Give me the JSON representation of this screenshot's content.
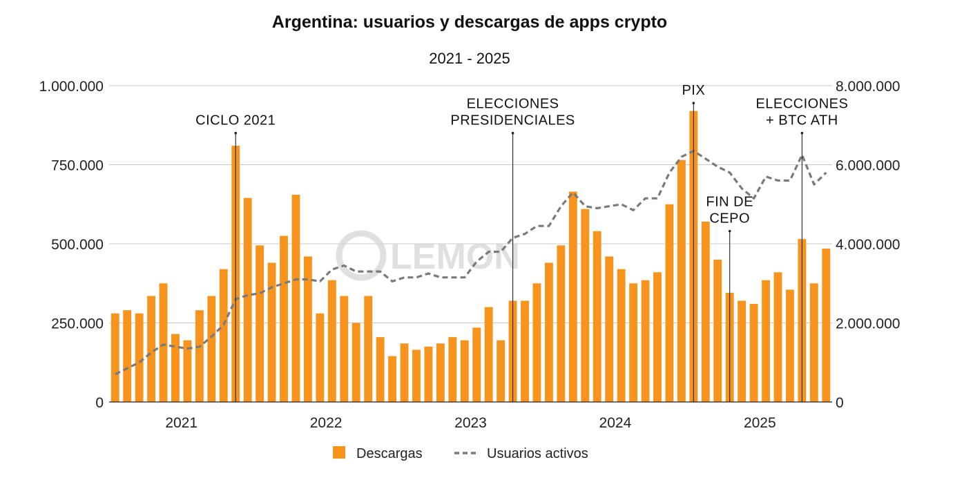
{
  "chart_data": {
    "type": "bar",
    "title": "Argentina: usuarios y descargas de apps crypto",
    "subtitle": "2021 - 2025",
    "watermark": "LEMON",
    "left_axis": {
      "ylim": [
        0,
        1000000
      ],
      "ticks": [
        0,
        250000,
        500000,
        750000,
        1000000
      ],
      "tick_labels": [
        "0",
        "250.000",
        "500.000",
        "750.000",
        "1.000.000"
      ]
    },
    "right_axis": {
      "ylim": [
        0,
        8000000
      ],
      "ticks": [
        0,
        2000000,
        4000000,
        6000000,
        8000000
      ],
      "tick_labels": [
        "0",
        "2.000.000",
        "4.000.000",
        "6.000.000",
        "8.000.000"
      ]
    },
    "x_labels": [
      {
        "label": "2021",
        "month_index": 6
      },
      {
        "label": "2022",
        "month_index": 18
      },
      {
        "label": "2023",
        "month_index": 30
      },
      {
        "label": "2024",
        "month_index": 42
      },
      {
        "label": "2025",
        "month_index": 54
      }
    ],
    "series": [
      {
        "name": "Descargas",
        "type": "bar",
        "axis": "left",
        "color": "#f7941d",
        "values": [
          280000,
          290000,
          280000,
          335000,
          375000,
          215000,
          195000,
          290000,
          335000,
          420000,
          810000,
          645000,
          495000,
          440000,
          525000,
          655000,
          460000,
          280000,
          385000,
          335000,
          250000,
          335000,
          205000,
          145000,
          185000,
          165000,
          175000,
          185000,
          205000,
          195000,
          235000,
          300000,
          195000,
          320000,
          320000,
          375000,
          440000,
          495000,
          665000,
          610000,
          540000,
          460000,
          420000,
          375000,
          385000,
          410000,
          625000,
          765000,
          920000,
          570000,
          450000,
          345000,
          320000,
          310000,
          385000,
          410000,
          355000,
          515000,
          375000,
          485000
        ]
      },
      {
        "name": "Usuarios activos",
        "type": "line",
        "axis": "right",
        "color": "#7a7a7a",
        "values": [
          700000,
          850000,
          1000000,
          1250000,
          1450000,
          1400000,
          1350000,
          1400000,
          1650000,
          1950000,
          2600000,
          2700000,
          2750000,
          2900000,
          3000000,
          3100000,
          3100000,
          3050000,
          3350000,
          3450000,
          3300000,
          3300000,
          3300000,
          3050000,
          3150000,
          3150000,
          3250000,
          3150000,
          3150000,
          3150000,
          3550000,
          3800000,
          3800000,
          4150000,
          4250000,
          4450000,
          4450000,
          4950000,
          5300000,
          4950000,
          4900000,
          4950000,
          5000000,
          4850000,
          5150000,
          5150000,
          5800000,
          6200000,
          6350000,
          6150000,
          5950000,
          5800000,
          5400000,
          5150000,
          5700000,
          5600000,
          5600000,
          6250000,
          5500000,
          5800000
        ]
      }
    ],
    "annotations": [
      {
        "lines": [
          "CICLO 2021"
        ],
        "month_index": 10,
        "top_value": 850000
      },
      {
        "lines": [
          "ELECCIONES",
          "PRESIDENCIALES"
        ],
        "month_index": 33,
        "top_value": 850000
      },
      {
        "lines": [
          "PIX"
        ],
        "month_index": 48,
        "top_value": 945000
      },
      {
        "lines": [
          "FIN DE",
          "CEPO"
        ],
        "month_index": 51,
        "top_value": 540000
      },
      {
        "lines": [
          "ELECCIONES",
          "+ BTC ATH"
        ],
        "month_index": 57,
        "top_value": 850000
      }
    ],
    "legend": {
      "placement": "bottom-center",
      "items": [
        {
          "label": "Descargas",
          "kind": "bar"
        },
        {
          "label": "Usuarios activos",
          "kind": "dashed-line"
        }
      ]
    }
  }
}
